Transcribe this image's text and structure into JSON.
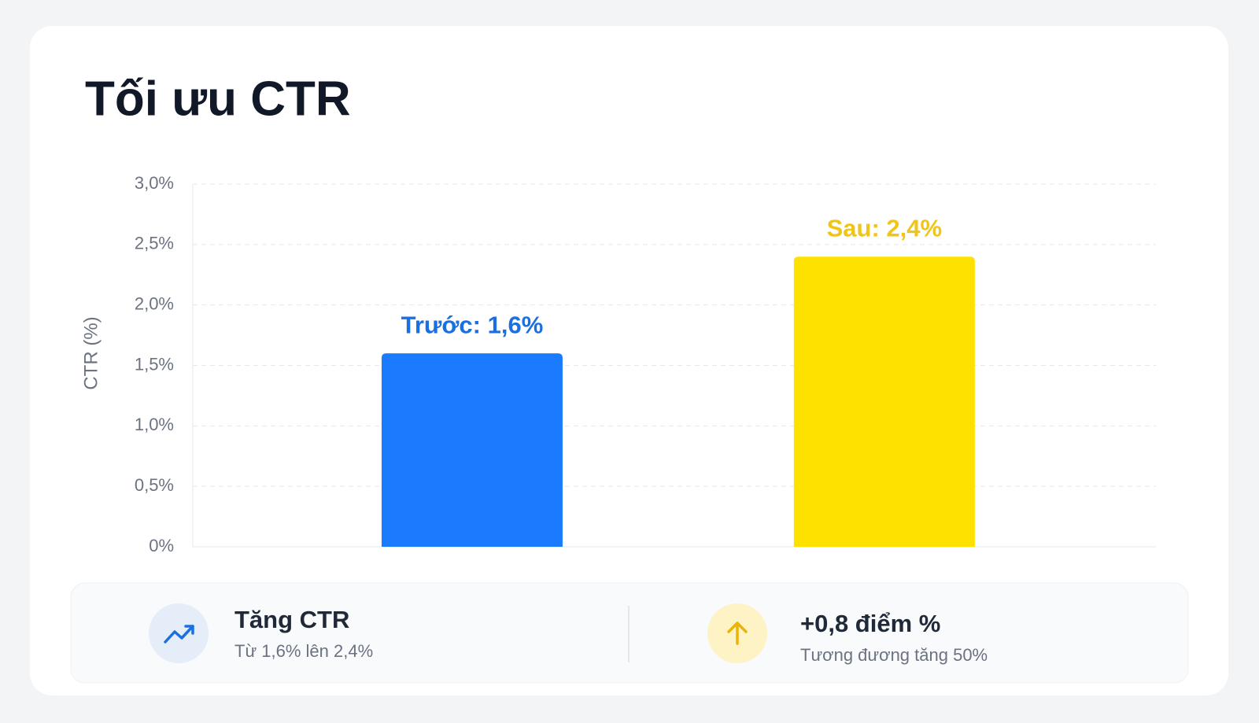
{
  "chart_data": {
    "type": "bar",
    "title": "Tối ưu CTR",
    "y_label": "CTR (%)",
    "categories": [
      null,
      null
    ],
    "values": [
      1.6,
      2.4
    ],
    "value_labels": [
      "Trước: 1,6%",
      "Sau: 2,4%"
    ],
    "colors": [
      "#1a7bff",
      "#ffe100"
    ],
    "label_colors": [
      "#1b6fe0",
      "#f0c419"
    ],
    "ylim": [
      0,
      3
    ],
    "yticks": [
      {
        "value": 0,
        "label": "0%"
      },
      {
        "value": 0.5,
        "label": "0,5%"
      },
      {
        "value": 1,
        "label": "1,0%"
      },
      {
        "value": 1.5,
        "label": "1,5%"
      },
      {
        "value": 2,
        "label": "2,0%"
      },
      {
        "value": 2.5,
        "label": "2,5%"
      },
      {
        "value": 3,
        "label": "3,0%"
      }
    ],
    "grid": true
  },
  "summary": [
    {
      "title": "Tăng CTR",
      "subtitle": "Từ 1,6% lên 2,4%"
    },
    {
      "title": "+0,8 điểm %",
      "subtitle": "Tương đương tăng 50%"
    }
  ]
}
